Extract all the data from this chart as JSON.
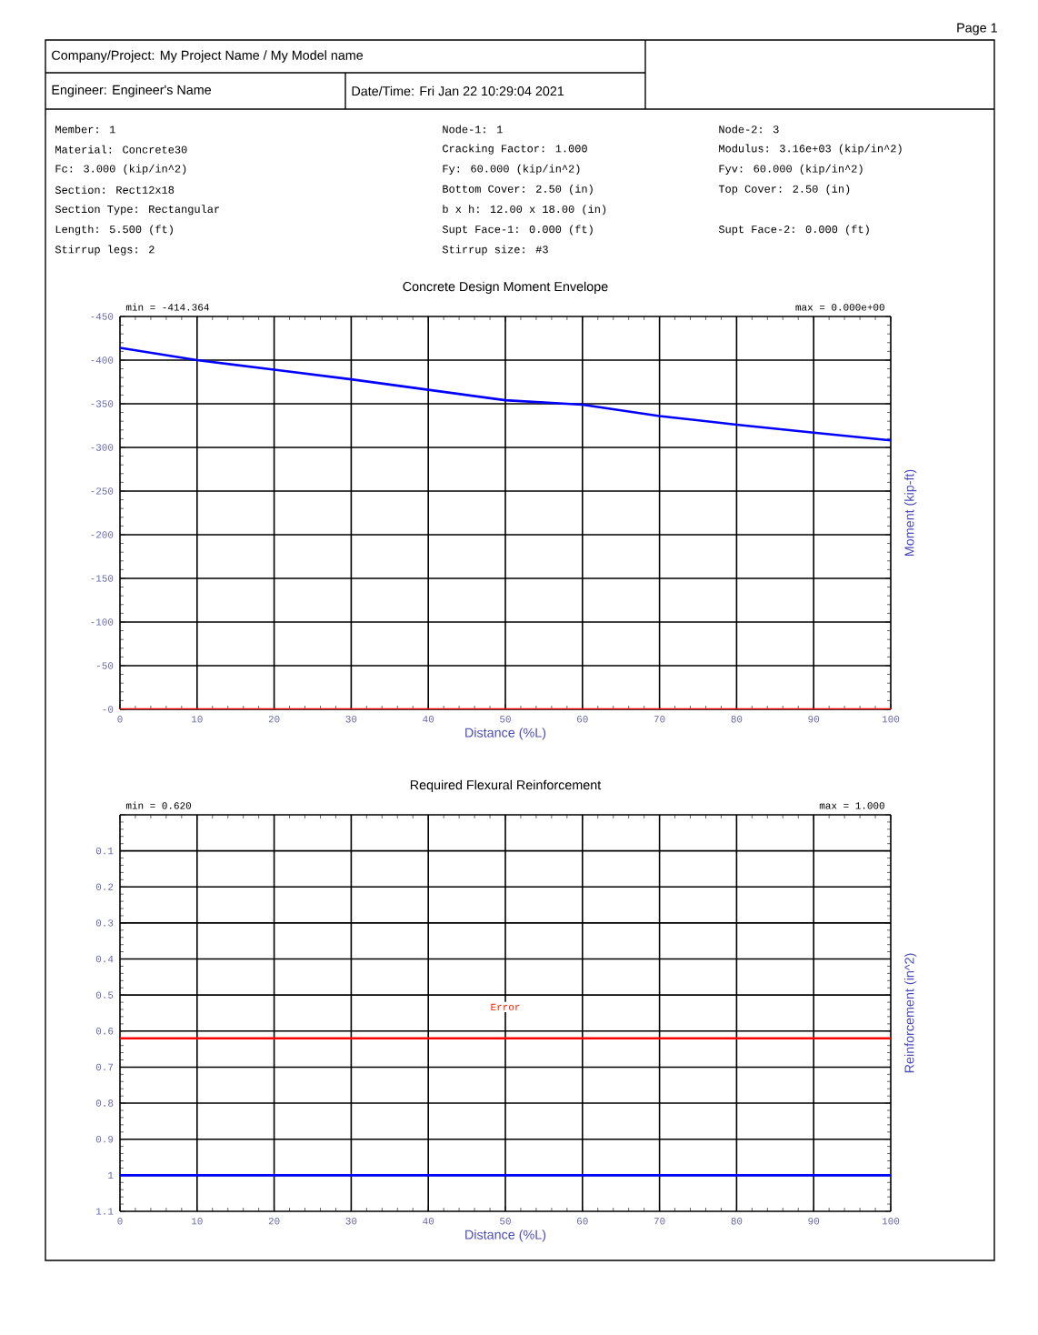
{
  "chart_data": [
    {
      "type": "other",
      "annotations": [
        "Page 1",
        "Company/Project: My Project Name / My Model name",
        "Engineer: Engineer's Name",
        "Date/Time: Fri Jan 22 10:29:04 2021",
        "Member: 1",
        "Material: Concrete30",
        "Fc: 3.000 (kip/in^2)",
        "Section: Rect12x18",
        "Section Type: Rectangular",
        "Length: 5.500 (ft)",
        "Stirrup legs: 2",
        "Node-1: 1",
        "Cracking Factor: 1.000",
        "Fy: 60.000 (kip/in^2)",
        "Bottom Cover: 2.50 (in)",
        "b x h: 12.00 x 18.00 (in)",
        "Supt Face-1: 0.000 (ft)",
        "Stirrup size: #3",
        "Node-2: 3",
        "Modulus: 3.16e+03 (kip/in^2)",
        "Fyv: 60.000 (kip/in^2)",
        "Top Cover: 2.50 (in)",
        "Supt Face-2: 0.000 (ft)"
      ]
    },
    {
      "type": "line",
      "title": "Concrete Design Moment Envelope",
      "xlabel": "Distance (%L)",
      "ylabel": "Moment (kip-ft)",
      "x": [
        0,
        10,
        20,
        30,
        40,
        50,
        60,
        70,
        80,
        90,
        100
      ],
      "series": [
        {
          "color": "#0000ff",
          "values": [
            -414,
            -400,
            -389,
            -378,
            -366,
            -354,
            -349,
            -336,
            -326,
            -317,
            -308
          ]
        },
        {
          "color": "#ff0000",
          "x": [
            0,
            100
          ],
          "values": [
            0,
            0
          ]
        }
      ],
      "xlim": [
        0,
        100
      ],
      "xticks": [
        0,
        10,
        20,
        30,
        40,
        50,
        60,
        70,
        80,
        90,
        100
      ],
      "ylim": [
        0,
        -450
      ],
      "yticks": [
        -450,
        -400,
        -350,
        -300,
        -250,
        -200,
        -150,
        -100,
        -50,
        {
          "value": 0,
          "label": "-0"
        }
      ],
      "grid": true,
      "annotations": [
        "min = -414.364",
        "max = 0.000e+00"
      ]
    },
    {
      "type": "line",
      "title": "Required Flexural Reinforcement",
      "xlabel": "Distance (%L)",
      "ylabel": "Reinforcement (in^2)",
      "x": [
        0,
        100
      ],
      "series": [
        {
          "color": "#ff0000",
          "values": [
            0.62,
            0.62
          ]
        },
        {
          "color": "#0000ff",
          "values": [
            1.0,
            1.0
          ]
        }
      ],
      "xlim": [
        0,
        100
      ],
      "xticks": [
        0,
        10,
        20,
        30,
        40,
        50,
        60,
        70,
        80,
        90,
        100
      ],
      "ylim": [
        1.1,
        0
      ],
      "yticks": [
        {
          "value": 0,
          "label": null
        },
        0.1,
        0.2,
        0.3,
        0.4,
        0.5,
        0.6,
        0.7,
        0.8,
        0.9,
        1,
        1.1
      ],
      "grid": true,
      "annotations": [
        "min = 0.620",
        "max = 1.000",
        "Error"
      ]
    }
  ]
}
